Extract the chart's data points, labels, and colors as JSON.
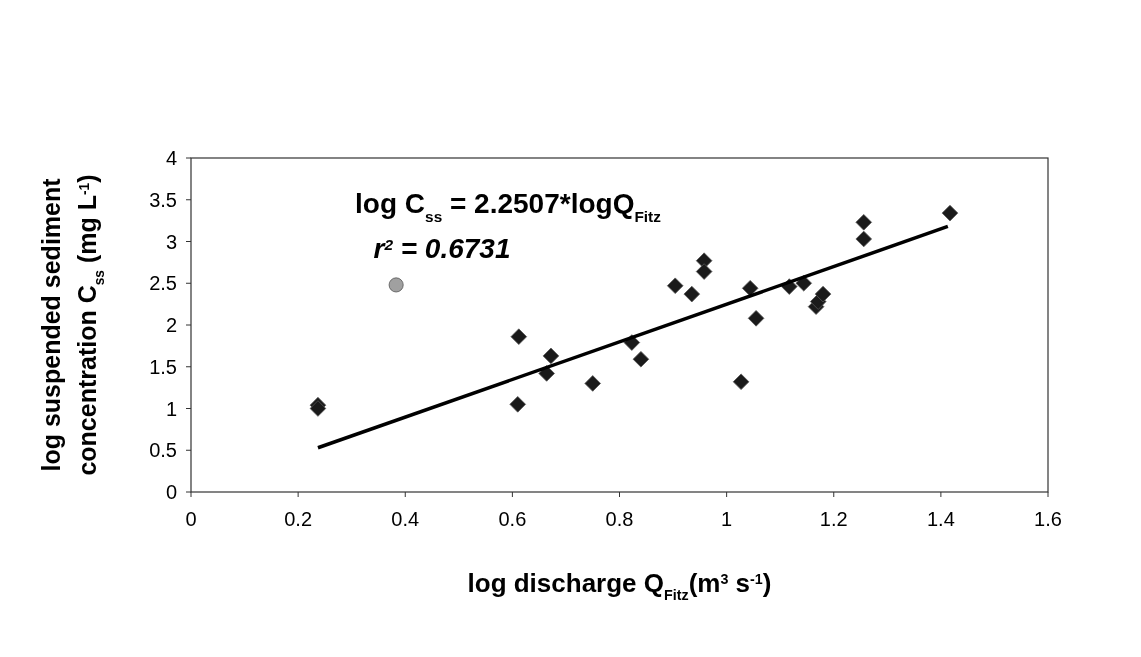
{
  "chart_data": {
    "type": "scatter",
    "xlabel": "log discharge Q$_{Fitz}$(m$^{3}$ s$^{-1}$)",
    "ylabel": "log suspended sediment concentration C$_{ss}$ (mg L$^{-1}$)",
    "annotations": [
      "log C$_{ss}$ = 2.2507*logQ$_{Fitz}$",
      "r$^{2}$ = 0.6731"
    ],
    "xlim": [
      0,
      1.6
    ],
    "xticks": [
      0,
      0.2,
      0.4,
      0.6,
      0.8,
      1,
      1.2,
      1.4,
      1.6
    ],
    "ylim": [
      0,
      4
    ],
    "yticks": [
      0,
      0.5,
      1,
      1.5,
      2,
      2.5,
      3,
      3.5,
      4
    ],
    "grid": false,
    "series": [
      {
        "marker": "diamond",
        "color": "#1a1a1a",
        "x": [
          0.237,
          0.237,
          0.61,
          0.612,
          0.664,
          0.672,
          0.75,
          0.823,
          0.84,
          0.904,
          0.935,
          0.958,
          0.958,
          1.027,
          1.044,
          1.055,
          1.117,
          1.144,
          1.167,
          1.171,
          1.18,
          1.256,
          1.256,
          1.417
        ],
        "values": [
          1.04,
          1.0,
          1.05,
          1.86,
          1.42,
          1.63,
          1.3,
          1.79,
          1.59,
          2.47,
          2.37,
          2.77,
          2.64,
          1.32,
          2.44,
          2.08,
          2.46,
          2.5,
          2.22,
          2.28,
          2.37,
          3.23,
          3.03,
          3.34
        ]
      },
      {
        "marker": "circle",
        "color": "#a0a0a0",
        "x": [
          0.383
        ],
        "values": [
          2.48
        ]
      },
      {
        "type": "line",
        "marker": "none",
        "color": "#000000",
        "x": [
          0.237,
          1.413
        ],
        "values": [
          0.53,
          3.18
        ]
      }
    ]
  }
}
